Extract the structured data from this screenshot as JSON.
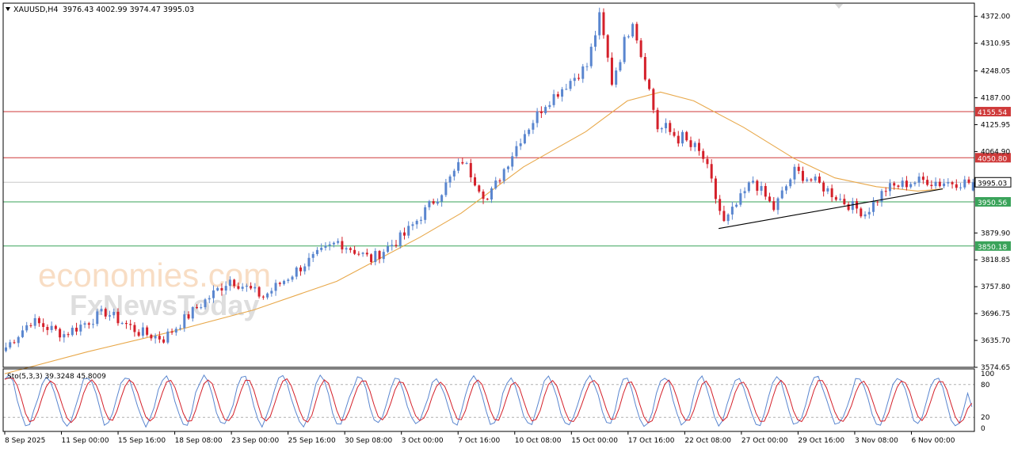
{
  "header": {
    "symbol": "XAUUSD,H4",
    "ohlc": "3976.43 4002.99 3974.47 3995.03"
  },
  "watermark": {
    "line1": "economies.com",
    "line2": "FxNewsToday"
  },
  "colors": {
    "bull": "#5a86cf",
    "bear": "#d4202a",
    "ma": "#e8a84a",
    "resistance": "#cf3a3a",
    "support": "#3aa35a",
    "trend": "#000000",
    "stoch_main": "#5a86cf",
    "stoch_signal": "#d4202a",
    "price_tag": "#a0a0a0",
    "grid_text": "#000000"
  },
  "chart_data": [
    {
      "type": "candlestick",
      "title": "XAUUSD,H4",
      "timeframe": "H4",
      "ylim": [
        3574.65,
        4402
      ],
      "y_ticks": [
        4372.0,
        4310.95,
        4248.05,
        4187.0,
        4125.95,
        4064.9,
        3879.9,
        3818.85,
        3757.8,
        3696.75,
        3635.7,
        3574.65
      ],
      "x_labels": [
        "8 Sep 2025",
        "11 Sep 00:00",
        "15 Sep 16:00",
        "18 Sep 08:00",
        "23 Sep 00:00",
        "25 Sep 16:00",
        "30 Sep 08:00",
        "3 Oct 00:00",
        "7 Oct 16:00",
        "10 Oct 08:00",
        "15 Oct 00:00",
        "17 Oct 16:00",
        "22 Oct 08:00",
        "27 Oct 00:00",
        "29 Oct 16:00",
        "3 Nov 08:00",
        "6 Nov 00:00"
      ],
      "last": {
        "open": 3976.43,
        "high": 4002.99,
        "low": 3974.47,
        "close": 3995.03
      },
      "price_tag": 3995.03,
      "horizontal_levels": [
        {
          "value": 4155.54,
          "kind": "resistance"
        },
        {
          "value": 4050.8,
          "kind": "resistance"
        },
        {
          "value": 3950.56,
          "kind": "support"
        },
        {
          "value": 3850.18,
          "kind": "support"
        }
      ],
      "trendline": [
        {
          "bar": 172,
          "price": 3890
        },
        {
          "bar": 226,
          "price": 3980
        }
      ],
      "moving_average": {
        "start": 3560,
        "path": [
          [
            0,
            3560
          ],
          [
            20,
            3610
          ],
          [
            40,
            3655
          ],
          [
            60,
            3705
          ],
          [
            80,
            3770
          ],
          [
            100,
            3870
          ],
          [
            110,
            3925
          ],
          [
            125,
            4030
          ],
          [
            140,
            4110
          ],
          [
            150,
            4180
          ],
          [
            158,
            4200
          ],
          [
            166,
            4180
          ],
          [
            178,
            4120
          ],
          [
            190,
            4050
          ],
          [
            200,
            4005
          ],
          [
            210,
            3985
          ],
          [
            220,
            3975
          ],
          [
            226,
            3980
          ]
        ]
      },
      "price_path": [
        [
          0,
          3620,
          3
        ],
        [
          6,
          3680,
          3
        ],
        [
          14,
          3650,
          3
        ],
        [
          24,
          3700,
          3
        ],
        [
          32,
          3655,
          3
        ],
        [
          38,
          3640,
          3
        ],
        [
          46,
          3710,
          3
        ],
        [
          54,
          3775,
          3
        ],
        [
          62,
          3735,
          3
        ],
        [
          72,
          3810,
          3
        ],
        [
          80,
          3860,
          3
        ],
        [
          88,
          3820,
          3
        ],
        [
          96,
          3875,
          3
        ],
        [
          105,
          3975,
          3
        ],
        [
          110,
          4045,
          3
        ],
        [
          116,
          3955,
          3
        ],
        [
          124,
          4095,
          3
        ],
        [
          130,
          4175,
          3
        ],
        [
          140,
          4260,
          3
        ],
        [
          143,
          4370,
          4
        ],
        [
          146,
          4225,
          4
        ],
        [
          151,
          4370,
          4
        ],
        [
          157,
          4120,
          5
        ],
        [
          162,
          4100,
          5
        ],
        [
          168,
          4050,
          4
        ],
        [
          173,
          3900,
          3
        ],
        [
          180,
          4000,
          3
        ],
        [
          185,
          3935,
          3
        ],
        [
          190,
          4020,
          3
        ],
        [
          196,
          3990,
          3
        ],
        [
          202,
          3950,
          3
        ],
        [
          207,
          3925,
          3
        ],
        [
          212,
          3980,
          3
        ],
        [
          218,
          3995,
          3
        ],
        [
          222,
          4000,
          4
        ],
        [
          225,
          3995,
          3
        ]
      ],
      "last_candle": {
        "open": 3976.43,
        "high": 4002.99,
        "low": 3974.47,
        "close": 3995.03
      }
    },
    {
      "type": "line",
      "title": "Sto(5,3,3) 39.3248 45.8009",
      "series": [
        {
          "name": "main",
          "last": 39.3248
        },
        {
          "name": "signal",
          "last": 45.8009
        }
      ],
      "levels": [
        80,
        20
      ],
      "ylim": [
        0,
        100
      ],
      "y_ticks": [
        100,
        80,
        20,
        0
      ]
    }
  ]
}
